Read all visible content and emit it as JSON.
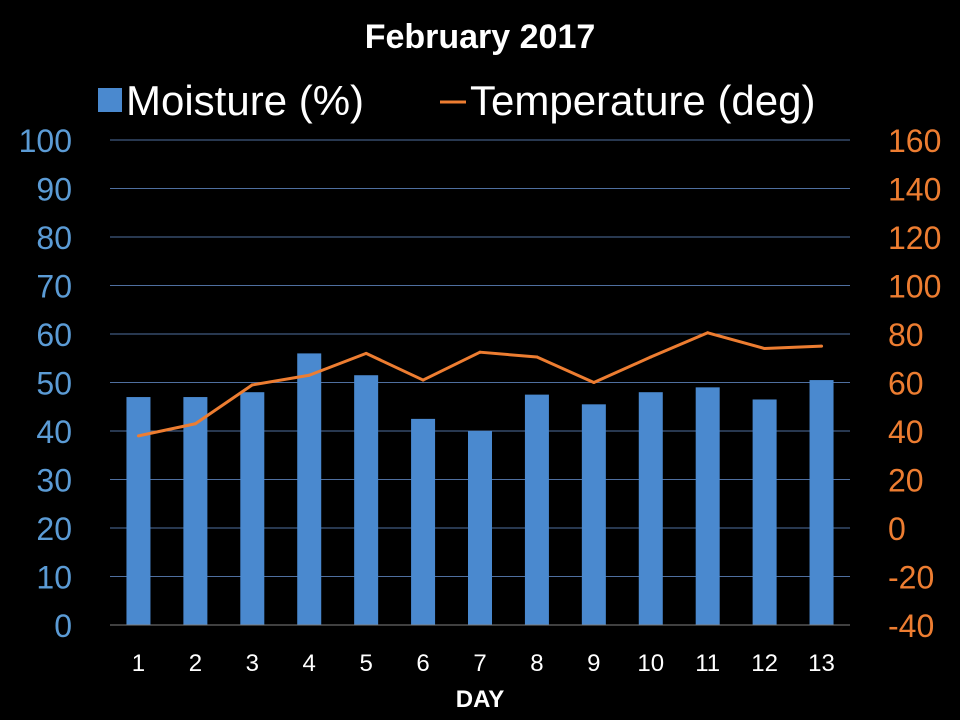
{
  "chart_data": {
    "type": "bar",
    "title": "February 2017",
    "xlabel": "DAY",
    "categories": [
      "1",
      "2",
      "3",
      "4",
      "5",
      "6",
      "7",
      "8",
      "9",
      "10",
      "11",
      "12",
      "13"
    ],
    "series": [
      {
        "name": "Moisture (%)",
        "type": "bar",
        "axis": "left",
        "color": "#4a89cf",
        "values": [
          47,
          47,
          48,
          56,
          51.5,
          42.5,
          40,
          47.5,
          45.5,
          48,
          49,
          46.5,
          50.5
        ]
      },
      {
        "name": "Temperature (deg)",
        "type": "line",
        "axis": "right",
        "color": "#ed7d31",
        "values": [
          38,
          43,
          59,
          63,
          72,
          61,
          72.5,
          70.5,
          60,
          70.5,
          80.5,
          74,
          75
        ]
      }
    ],
    "left_axis": {
      "ylim": [
        0,
        100
      ],
      "ticks": [
        "0",
        "10",
        "20",
        "30",
        "40",
        "50",
        "60",
        "70",
        "80",
        "90",
        "100"
      ],
      "color": "#5b9bd5"
    },
    "right_axis": {
      "ylim": [
        -40,
        160
      ],
      "ticks": [
        "-40",
        "-20",
        "0",
        "20",
        "40",
        "60",
        "80",
        "100",
        "120",
        "140",
        "160"
      ],
      "color": "#ed7d31"
    },
    "grid": true,
    "legend_position": "top"
  }
}
